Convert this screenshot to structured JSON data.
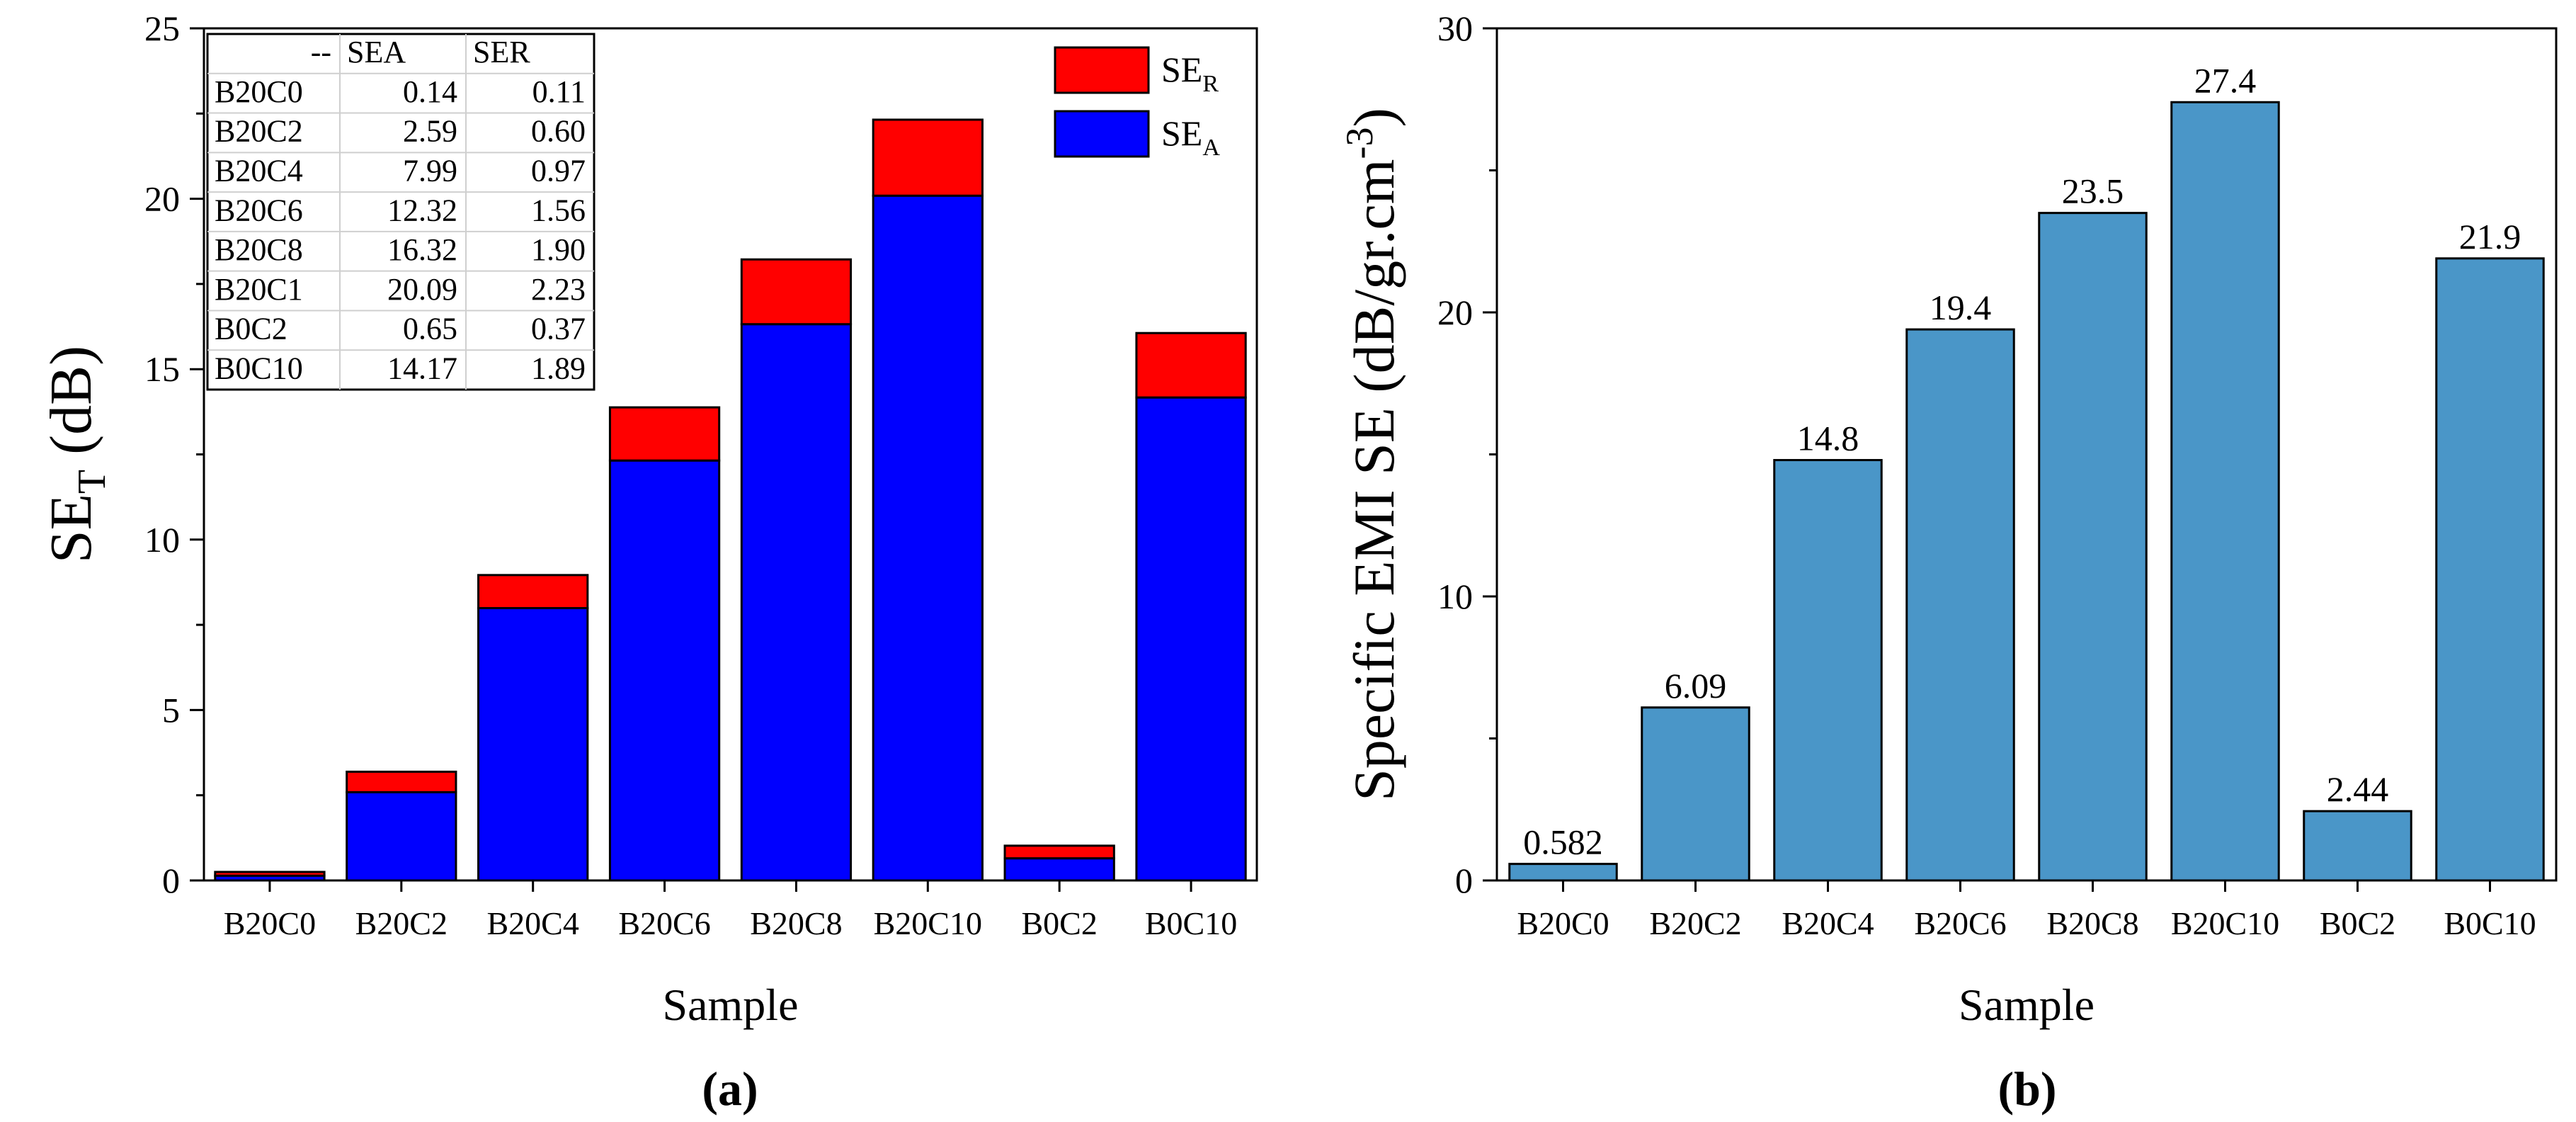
{
  "chart_data": [
    {
      "type": "bar",
      "stacked": true,
      "panel_label": "(a)",
      "xlabel": "Sample",
      "ylabel": {
        "base": "SE",
        "sub": "T",
        "unit": " (dB)"
      },
      "ylim": [
        0,
        25
      ],
      "yticks": [
        "0",
        "5",
        "10",
        "15",
        "20",
        "25"
      ],
      "categories": [
        "B20C0",
        "B20C2",
        "B20C4",
        "B20C6",
        "B20C8",
        "B20C10",
        "B0C2",
        "B0C10"
      ],
      "series": [
        {
          "name": "SEA",
          "legend_base": "SE",
          "legend_sub": "A",
          "color": "#0000ff",
          "values": [
            0.14,
            2.59,
            7.99,
            12.32,
            16.32,
            20.09,
            0.65,
            14.17
          ]
        },
        {
          "name": "SER",
          "legend_base": "SE",
          "legend_sub": "R",
          "color": "#ff0000",
          "values": [
            0.11,
            0.6,
            0.97,
            1.56,
            1.9,
            2.23,
            0.37,
            1.89
          ]
        }
      ],
      "legend_position": "top-right",
      "table": {
        "headers": [
          "--",
          "SEA",
          "SER"
        ],
        "rows": [
          [
            "B20C0",
            "0.14",
            "0.11"
          ],
          [
            "B20C2",
            "2.59",
            "0.60"
          ],
          [
            "B20C4",
            "7.99",
            "0.97"
          ],
          [
            "B20C6",
            "12.32",
            "1.56"
          ],
          [
            "B20C8",
            "16.32",
            "1.90"
          ],
          [
            "B20C1",
            "20.09",
            "2.23"
          ],
          [
            "B0C2",
            "0.65",
            "0.37"
          ],
          [
            "B0C10",
            "14.17",
            "1.89"
          ]
        ]
      }
    },
    {
      "type": "bar",
      "panel_label": "(b)",
      "xlabel": "Sample",
      "ylabel": {
        "base": "Specific EMI SE (dB/gr.cm",
        "sup": "-3",
        "unit": ")"
      },
      "ylim": [
        0,
        30
      ],
      "yticks": [
        "0",
        "10",
        "20",
        "30"
      ],
      "categories": [
        "B20C0",
        "B20C2",
        "B20C4",
        "B20C6",
        "B20C8",
        "B20C10",
        "B0C2",
        "B0C10"
      ],
      "values": [
        0.582,
        6.09,
        14.8,
        19.4,
        23.5,
        27.4,
        2.44,
        21.9
      ],
      "value_labels": [
        "0.582",
        "6.09",
        "14.8",
        "19.4",
        "23.5",
        "27.4",
        "2.44",
        "21.9"
      ],
      "color": "#4a96c8"
    }
  ]
}
